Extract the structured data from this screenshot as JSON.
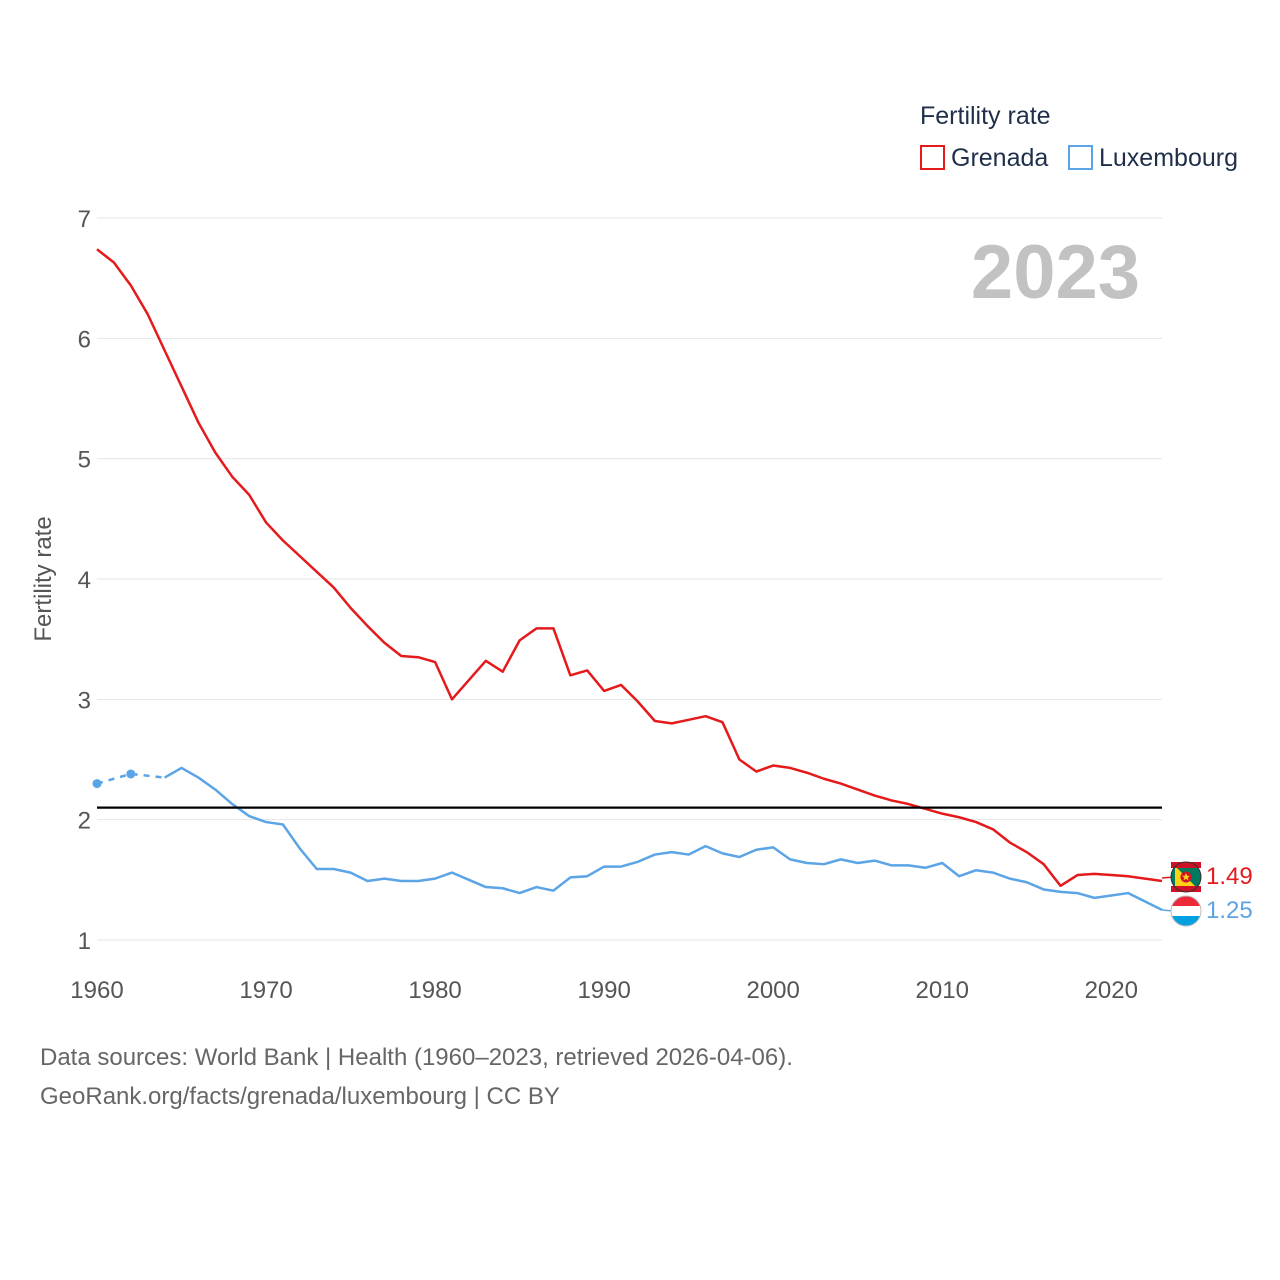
{
  "chart_data": {
    "type": "line",
    "year_label": "2023",
    "ylabel": "Fertility rate",
    "xlabel": "",
    "ylim": [
      1,
      7
    ],
    "xlim": [
      1960,
      2023
    ],
    "y_ticks": [
      1,
      2,
      3,
      4,
      5,
      6,
      7
    ],
    "x_ticks": [
      1960,
      1970,
      1980,
      1990,
      2000,
      2010,
      2020
    ],
    "grid": true,
    "legend": {
      "title": "Fertility rate",
      "position": "top-right",
      "entries": [
        "Grenada",
        "Luxembourg"
      ]
    },
    "reference_line": {
      "value": 2.1,
      "color": "#000000"
    },
    "series": [
      {
        "name": "Grenada",
        "color": "#e41a1c",
        "end_label": "1.49",
        "flag_icon": "grenada-flag-icon",
        "x": [
          1960,
          1961,
          1962,
          1963,
          1964,
          1965,
          1966,
          1967,
          1968,
          1969,
          1970,
          1971,
          1972,
          1973,
          1974,
          1975,
          1976,
          1977,
          1978,
          1979,
          1980,
          1981,
          1982,
          1983,
          1984,
          1985,
          1986,
          1987,
          1988,
          1989,
          1990,
          1991,
          1992,
          1993,
          1994,
          1995,
          1996,
          1997,
          1998,
          1999,
          2000,
          2001,
          2002,
          2003,
          2004,
          2005,
          2006,
          2007,
          2008,
          2009,
          2010,
          2011,
          2012,
          2013,
          2014,
          2015,
          2016,
          2017,
          2018,
          2019,
          2020,
          2021,
          2022,
          2023
        ],
        "values": [
          6.74,
          6.63,
          6.44,
          6.2,
          5.9,
          5.6,
          5.3,
          5.05,
          4.85,
          4.7,
          4.47,
          4.32,
          4.19,
          4.06,
          3.93,
          3.76,
          3.61,
          3.47,
          3.36,
          3.35,
          3.31,
          3.0,
          3.16,
          3.32,
          3.23,
          3.49,
          3.59,
          3.59,
          3.2,
          3.24,
          3.07,
          3.12,
          2.98,
          2.82,
          2.8,
          2.83,
          2.86,
          2.81,
          2.5,
          2.4,
          2.45,
          2.43,
          2.39,
          2.34,
          2.3,
          2.25,
          2.2,
          2.16,
          2.13,
          2.09,
          2.05,
          2.02,
          1.98,
          1.92,
          1.81,
          1.73,
          1.63,
          1.45,
          1.54,
          1.55,
          1.54,
          1.53,
          1.51,
          1.49
        ]
      },
      {
        "name": "Luxembourg",
        "color": "#5ba4e6",
        "end_label": "1.25",
        "flag_icon": "luxembourg-flag-icon",
        "x": [
          1960,
          1962,
          1964,
          1965,
          1966,
          1967,
          1968,
          1969,
          1970,
          1971,
          1972,
          1973,
          1974,
          1975,
          1976,
          1977,
          1978,
          1979,
          1980,
          1981,
          1982,
          1983,
          1984,
          1985,
          1986,
          1987,
          1988,
          1989,
          1990,
          1991,
          1992,
          1993,
          1994,
          1995,
          1996,
          1997,
          1998,
          1999,
          2000,
          2001,
          2002,
          2003,
          2004,
          2005,
          2006,
          2007,
          2008,
          2009,
          2010,
          2011,
          2012,
          2013,
          2014,
          2015,
          2016,
          2017,
          2018,
          2019,
          2020,
          2021,
          2022,
          2023
        ],
        "values": [
          2.3,
          2.38,
          2.35,
          2.43,
          2.35,
          2.25,
          2.13,
          2.03,
          1.98,
          1.96,
          1.76,
          1.59,
          1.59,
          1.56,
          1.49,
          1.51,
          1.49,
          1.49,
          1.51,
          1.56,
          1.5,
          1.44,
          1.43,
          1.39,
          1.44,
          1.41,
          1.52,
          1.53,
          1.61,
          1.61,
          1.65,
          1.71,
          1.73,
          1.71,
          1.78,
          1.72,
          1.69,
          1.75,
          1.77,
          1.67,
          1.64,
          1.63,
          1.67,
          1.64,
          1.66,
          1.62,
          1.62,
          1.6,
          1.64,
          1.53,
          1.58,
          1.56,
          1.51,
          1.48,
          1.42,
          1.4,
          1.39,
          1.35,
          1.37,
          1.39,
          1.32,
          1.25
        ],
        "dashed_until": 1964,
        "marker_years": [
          1960,
          1962
        ]
      }
    ]
  },
  "sources": {
    "line1": "Data sources: World Bank | Health (1960–2023, retrieved 2026-04-06).",
    "line2": "GeoRank.org/facts/grenada/luxembourg | CC BY"
  }
}
